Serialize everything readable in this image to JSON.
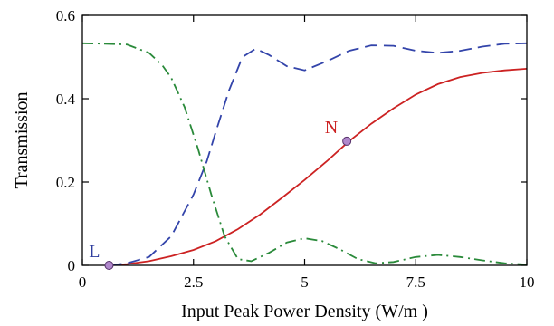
{
  "chart_data": {
    "type": "line",
    "xlabel": "Input Peak Power Density (W/m )",
    "ylabel": "Transmission",
    "xlim": [
      0,
      10
    ],
    "ylim": [
      0,
      0.6
    ],
    "xticks": [
      0,
      2.5,
      5,
      7.5,
      10
    ],
    "xtick_labels": [
      "0",
      "2.5",
      "5",
      "7.5",
      "10"
    ],
    "yticks": [
      0,
      0.2,
      0.4,
      0.6
    ],
    "ytick_labels": [
      "0",
      "0.2",
      "0.4",
      "0.6"
    ],
    "grid": false,
    "series": [
      {
        "style": "solid",
        "color": "#cc2222",
        "x": [
          0.6,
          1.0,
          1.5,
          2.0,
          2.5,
          3.0,
          3.5,
          4.0,
          4.5,
          5.0,
          5.5,
          6.0,
          6.5,
          7.0,
          7.5,
          8.0,
          8.5,
          9.0,
          9.5,
          10.0
        ],
        "y": [
          0.0,
          0.003,
          0.01,
          0.022,
          0.037,
          0.058,
          0.087,
          0.122,
          0.163,
          0.205,
          0.25,
          0.298,
          0.34,
          0.377,
          0.41,
          0.435,
          0.452,
          0.462,
          0.468,
          0.472
        ]
      },
      {
        "style": "dashed",
        "color": "#3344aa",
        "x": [
          0.6,
          1.0,
          1.5,
          2.0,
          2.5,
          2.8,
          3.0,
          3.3,
          3.6,
          3.9,
          4.2,
          4.6,
          5.0,
          5.5,
          6.0,
          6.5,
          7.0,
          7.5,
          8.0,
          8.5,
          9.0,
          9.5,
          10.0
        ],
        "y": [
          0.0,
          0.005,
          0.02,
          0.07,
          0.17,
          0.25,
          0.32,
          0.42,
          0.5,
          0.52,
          0.505,
          0.478,
          0.468,
          0.49,
          0.515,
          0.528,
          0.527,
          0.515,
          0.51,
          0.515,
          0.525,
          0.532,
          0.533
        ]
      },
      {
        "style": "dash-dot",
        "color": "#2a8a3a",
        "x": [
          0.0,
          0.5,
          1.0,
          1.5,
          1.8,
          2.0,
          2.3,
          2.6,
          2.9,
          3.2,
          3.5,
          3.8,
          4.2,
          4.6,
          5.0,
          5.4,
          5.8,
          6.2,
          6.6,
          7.0,
          7.5,
          8.0,
          8.5,
          9.0,
          9.5,
          10.0
        ],
        "y": [
          0.533,
          0.532,
          0.53,
          0.51,
          0.48,
          0.45,
          0.38,
          0.28,
          0.17,
          0.07,
          0.015,
          0.01,
          0.03,
          0.055,
          0.065,
          0.058,
          0.038,
          0.015,
          0.005,
          0.008,
          0.02,
          0.025,
          0.02,
          0.012,
          0.005,
          0.002
        ]
      }
    ],
    "markers": [
      {
        "label": "L",
        "x": 0.6,
        "y": 0.0,
        "label_color": "#2f3e9e",
        "fill": "#b088cc"
      },
      {
        "label": "N",
        "x": 5.95,
        "y": 0.298,
        "label_color": "#cc2222",
        "fill": "#b088cc"
      }
    ]
  }
}
